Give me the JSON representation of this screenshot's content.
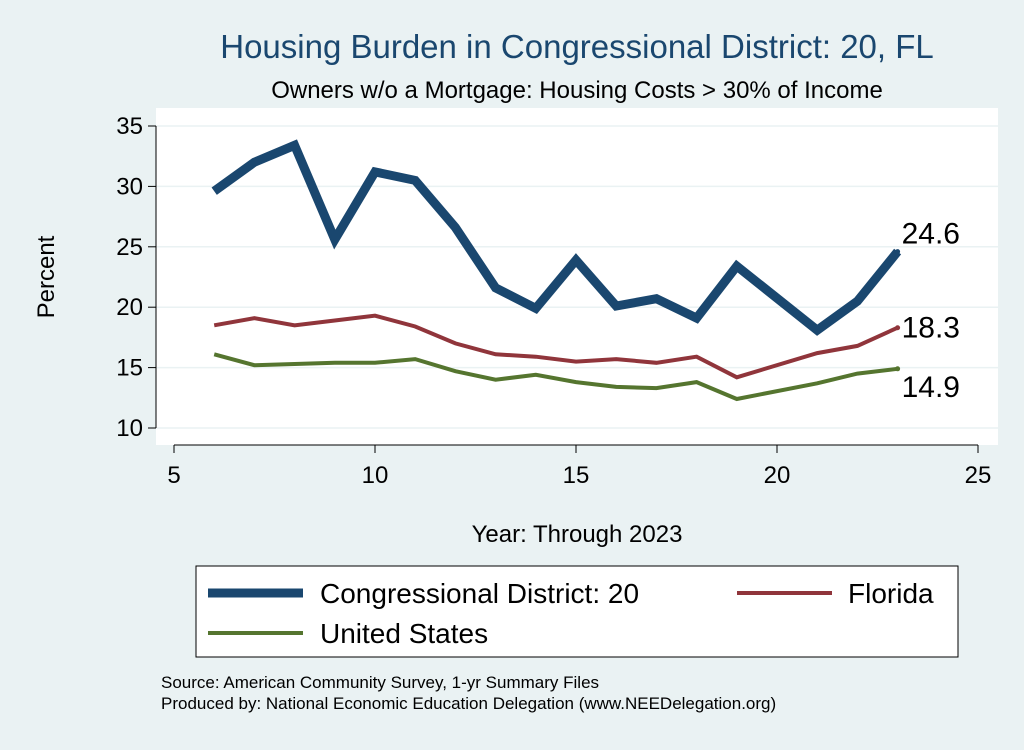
{
  "chart_data": {
    "type": "line",
    "title": "Housing Burden in Congressional District:  20, FL",
    "subtitle": "Owners w/o a Mortgage: Housing Costs > 30% of Income",
    "xlabel": "Year: Through 2023",
    "ylabel": "Percent",
    "xlim": [
      5,
      25
    ],
    "ylim": [
      10,
      35
    ],
    "xticks": [
      5,
      10,
      15,
      20,
      25
    ],
    "yticks": [
      10,
      15,
      20,
      25,
      30,
      35
    ],
    "grid": true,
    "legend_position": "bottom",
    "series": [
      {
        "name": "Congressional District:  20",
        "color": "#1a476f",
        "x": [
          6,
          7,
          8,
          9,
          10,
          11,
          12,
          13,
          14,
          15,
          16,
          17,
          18,
          19,
          21,
          22,
          23
        ],
        "y": [
          29.6,
          32.0,
          33.4,
          25.6,
          31.2,
          30.5,
          26.6,
          21.6,
          19.9,
          23.9,
          20.1,
          20.7,
          19.1,
          23.4,
          18.1,
          20.5,
          24.6
        ],
        "end_label": "24.6"
      },
      {
        "name": "Florida",
        "color": "#90353b",
        "x": [
          6,
          7,
          8,
          9,
          10,
          11,
          12,
          13,
          14,
          15,
          16,
          17,
          18,
          19,
          21,
          22,
          23
        ],
        "y": [
          18.5,
          19.1,
          18.5,
          18.9,
          19.3,
          18.4,
          17.0,
          16.1,
          15.9,
          15.5,
          15.7,
          15.4,
          15.9,
          14.2,
          16.2,
          16.8,
          18.3
        ],
        "end_label": "18.3"
      },
      {
        "name": "United States",
        "color": "#55752f",
        "x": [
          6,
          7,
          8,
          9,
          10,
          11,
          12,
          13,
          14,
          15,
          16,
          17,
          18,
          19,
          21,
          22,
          23
        ],
        "y": [
          16.1,
          15.2,
          15.3,
          15.4,
          15.4,
          15.7,
          14.7,
          14.0,
          14.4,
          13.8,
          13.4,
          13.3,
          13.8,
          12.4,
          13.7,
          14.5,
          14.9
        ],
        "end_label": "14.9"
      }
    ]
  },
  "source_text": "Source: American Community Survey, 1-yr Summary Files",
  "produced_text": "Produced by: National Economic Education Delegation (www.NEEDelegation.org)"
}
